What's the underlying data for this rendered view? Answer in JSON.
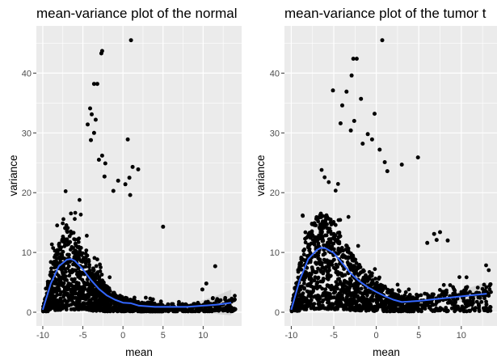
{
  "chart_data": [
    {
      "type": "scatter",
      "title": "mean-variance plot of the normal",
      "xlabel": "mean",
      "ylabel": "variance",
      "xlim": [
        -10.8,
        14.8
      ],
      "ylim": [
        -2.3,
        47.9
      ],
      "x_ticks": [
        -10,
        -5,
        0,
        5,
        10
      ],
      "x_tick_labels": [
        "-10",
        "-5",
        "0",
        "5",
        "10"
      ],
      "y_ticks": [
        0,
        10,
        20,
        30,
        40
      ],
      "y_tick_labels": [
        "0",
        "10",
        "20",
        "30",
        "40"
      ],
      "grid": true,
      "legend": "none",
      "colors": {
        "panel": "#ebebeb",
        "grid": "#ffffff",
        "points": "#000000",
        "smooth_line": "#3366ff",
        "confidence_band": "#cccccc"
      },
      "smooth": {
        "x": [
          -10,
          -9,
          -8,
          -7,
          -6.5,
          -6,
          -5,
          -4,
          -3,
          -2,
          -1,
          0,
          1,
          2,
          4,
          6,
          8,
          10,
          12,
          13.5
        ],
        "y": [
          0.4,
          4.8,
          7.7,
          8.8,
          8.9,
          8.6,
          7.2,
          5.4,
          3.9,
          2.8,
          2.1,
          1.6,
          1.5,
          1.1,
          0.9,
          0.9,
          0.9,
          1.1,
          1.3,
          1.6
        ]
      },
      "outliers": [
        {
          "x": 1,
          "y": 45.5
        },
        {
          "x": -2.6,
          "y": 43.7
        },
        {
          "x": -2.7,
          "y": 43.3
        },
        {
          "x": -3.6,
          "y": 38.2
        },
        {
          "x": -3.2,
          "y": 38.2
        },
        {
          "x": -4.1,
          "y": 34.1
        },
        {
          "x": -3.9,
          "y": 33.1
        },
        {
          "x": -3.4,
          "y": 32.2
        },
        {
          "x": -4.4,
          "y": 31.4
        },
        {
          "x": -3.6,
          "y": 30.0
        },
        {
          "x": 0.6,
          "y": 28.9
        },
        {
          "x": -4.0,
          "y": 28.8
        },
        {
          "x": -2.6,
          "y": 26.2
        },
        {
          "x": -3.0,
          "y": 25.5
        },
        {
          "x": -2.2,
          "y": 24.9
        },
        {
          "x": 1.2,
          "y": 24.3
        },
        {
          "x": 1.9,
          "y": 23.9
        },
        {
          "x": 0.8,
          "y": 22.5
        },
        {
          "x": -2.3,
          "y": 22.7
        },
        {
          "x": -0.6,
          "y": 22.0
        },
        {
          "x": 0.3,
          "y": 21.4
        },
        {
          "x": -1.2,
          "y": 20.3
        },
        {
          "x": 0.9,
          "y": 19.6
        },
        {
          "x": 5.0,
          "y": 14.3
        },
        {
          "x": 11.5,
          "y": 7.7
        },
        {
          "x": 10.4,
          "y": 4.8
        },
        {
          "x": 9.9,
          "y": 3.8
        },
        {
          "x": 12.5,
          "y": 0.6
        },
        {
          "x": 13.9,
          "y": 0.4
        },
        {
          "x": 14.0,
          "y": 0.5
        }
      ]
    },
    {
      "type": "scatter",
      "title": "mean-variance plot of the tumor t",
      "xlabel": "mean",
      "ylabel": "variance",
      "xlim": [
        -10.8,
        14.2
      ],
      "ylim": [
        -2.3,
        47.9
      ],
      "x_ticks": [
        -10,
        -5,
        0,
        5,
        10
      ],
      "x_tick_labels": [
        "-10",
        "-5",
        "0",
        "5",
        "10"
      ],
      "y_ticks": [
        0,
        10,
        20,
        30,
        40
      ],
      "y_tick_labels": [
        "0",
        "10",
        "20",
        "30",
        "40"
      ],
      "grid": true,
      "legend": "none",
      "colors": {
        "panel": "#ebebeb",
        "grid": "#ffffff",
        "points": "#000000",
        "smooth_line": "#3366ff",
        "confidence_band": "#cccccc"
      },
      "smooth": {
        "x": [
          -10,
          -9,
          -8,
          -7,
          -6.5,
          -6,
          -5,
          -4,
          -3,
          -2,
          -1,
          0,
          1,
          2,
          3,
          5,
          7,
          9,
          11,
          13
        ],
        "y": [
          0.4,
          5.4,
          8.9,
          10.4,
          10.8,
          10.7,
          9.9,
          8.2,
          6.5,
          5.2,
          4.2,
          3.4,
          2.7,
          2.1,
          1.7,
          1.9,
          2.2,
          2.5,
          2.8,
          3.1
        ]
      },
      "outliers": [
        {
          "x": 0.7,
          "y": 45.5
        },
        {
          "x": -2.7,
          "y": 42.4
        },
        {
          "x": -2.3,
          "y": 42.4
        },
        {
          "x": -2.9,
          "y": 39.6
        },
        {
          "x": -3.5,
          "y": 36.9
        },
        {
          "x": -5.1,
          "y": 37.1
        },
        {
          "x": -1.8,
          "y": 35.7
        },
        {
          "x": -4.0,
          "y": 34.6
        },
        {
          "x": -0.2,
          "y": 33.2
        },
        {
          "x": -2.6,
          "y": 32.0
        },
        {
          "x": -4.2,
          "y": 31.6
        },
        {
          "x": -3.0,
          "y": 30.4
        },
        {
          "x": -1.0,
          "y": 29.8
        },
        {
          "x": -0.5,
          "y": 28.9
        },
        {
          "x": -1.6,
          "y": 28.2
        },
        {
          "x": 0.4,
          "y": 27.2
        },
        {
          "x": 1.0,
          "y": 25.1
        },
        {
          "x": 4.9,
          "y": 25.9
        },
        {
          "x": 1.3,
          "y": 23.6
        },
        {
          "x": 3.0,
          "y": 24.7
        },
        {
          "x": 6.8,
          "y": 13.1
        },
        {
          "x": 7.1,
          "y": 12.1
        },
        {
          "x": 7.5,
          "y": 13.4
        },
        {
          "x": 8.4,
          "y": 12.0
        },
        {
          "x": 6.0,
          "y": 11.6
        },
        {
          "x": 12.9,
          "y": 0.8
        },
        {
          "x": 11.2,
          "y": 1.6
        }
      ]
    }
  ]
}
